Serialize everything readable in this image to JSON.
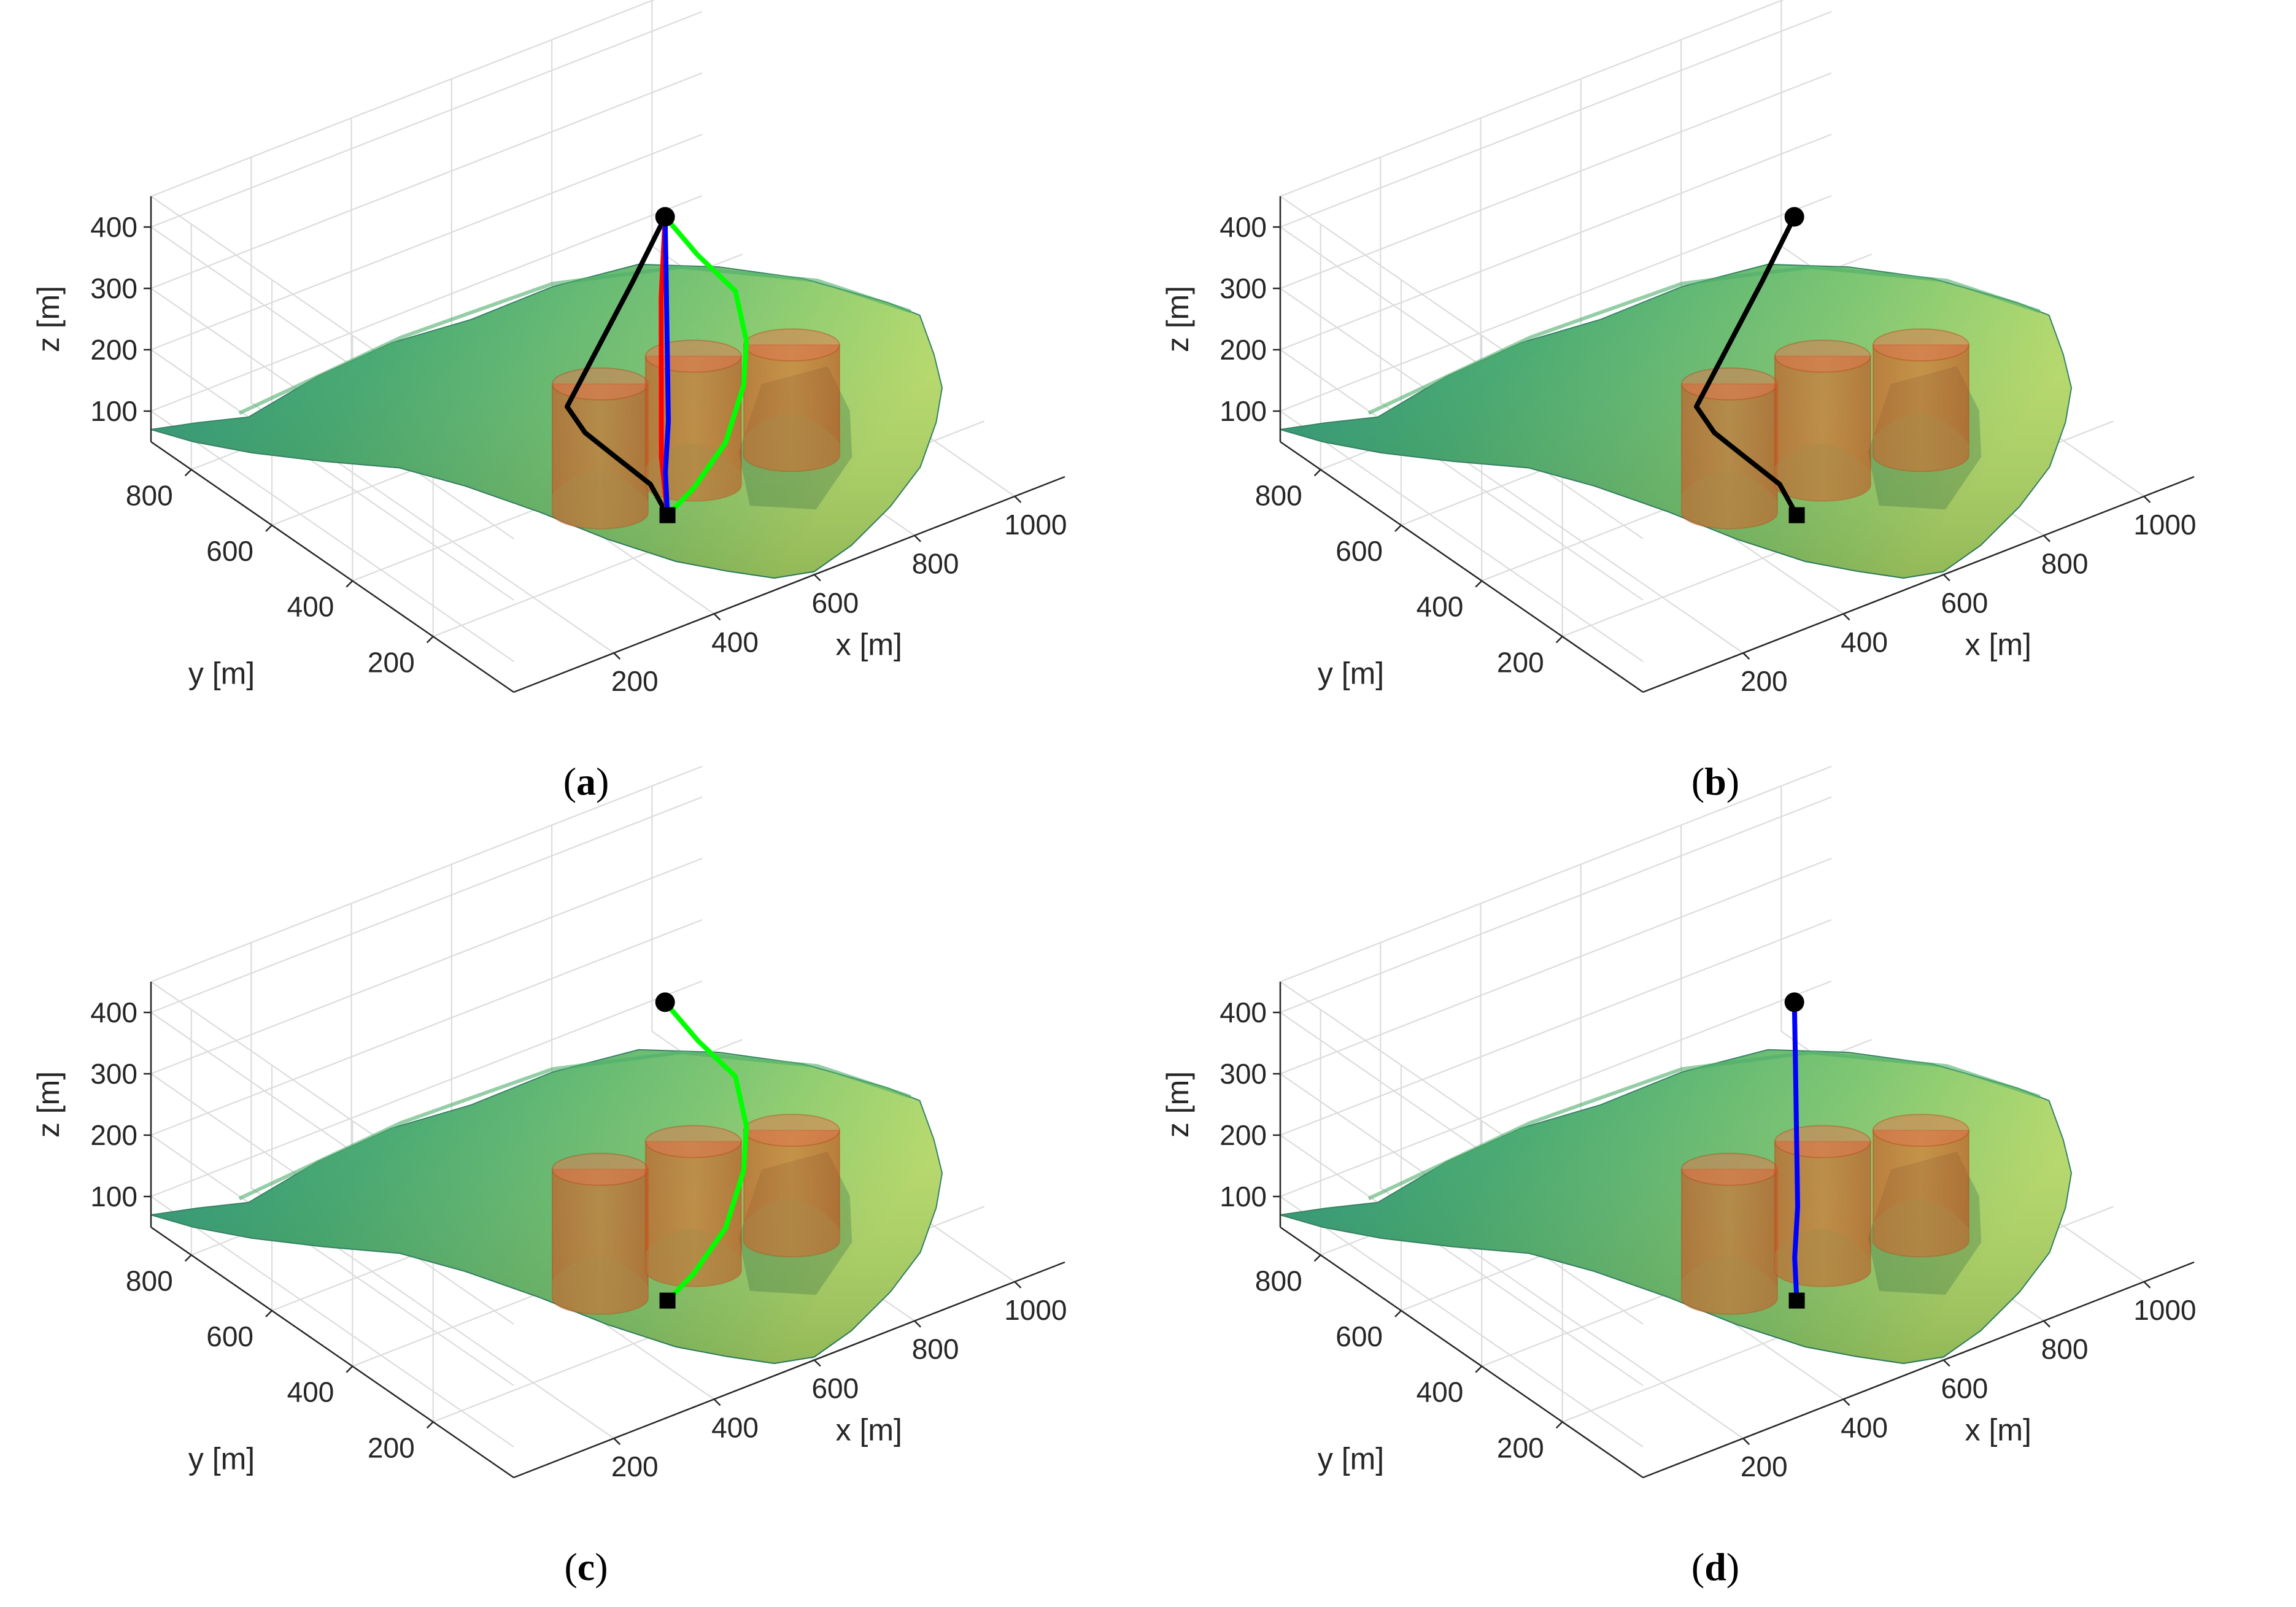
{
  "figure": {
    "panels": [
      {
        "id": "a",
        "caption_letter": "a",
        "paths": [
          {
            "name": "black",
            "color": "#000000"
          },
          {
            "name": "red",
            "color": "#ff0000"
          },
          {
            "name": "green",
            "color": "#00ff00"
          },
          {
            "name": "blue",
            "color": "#0000ff"
          }
        ]
      },
      {
        "id": "b",
        "caption_letter": "b",
        "paths": [
          {
            "name": "black",
            "color": "#000000"
          }
        ]
      },
      {
        "id": "c",
        "caption_letter": "c",
        "paths": [
          {
            "name": "green",
            "color": "#00ff00"
          }
        ]
      },
      {
        "id": "d",
        "caption_letter": "d",
        "paths": [
          {
            "name": "blue",
            "color": "#0000ff"
          }
        ]
      }
    ]
  },
  "chart_data": {
    "type": "surface3d",
    "title": "",
    "xlabel": "x [m]",
    "ylabel": "y [m]",
    "zlabel": "z [m]",
    "xlim": [
      0,
      1100
    ],
    "ylim": [
      0,
      900
    ],
    "zlim": [
      50,
      450
    ],
    "x_ticks": [
      {
        "value": 200,
        "label": "200"
      },
      {
        "value": 400,
        "label": "400"
      },
      {
        "value": 600,
        "label": "600"
      },
      {
        "value": 800,
        "label": "800"
      },
      {
        "value": 1000,
        "label": "1000"
      }
    ],
    "y_ticks": [
      {
        "value": 200,
        "label": "200"
      },
      {
        "value": 400,
        "label": "400"
      },
      {
        "value": 600,
        "label": "600"
      },
      {
        "value": 800,
        "label": "800"
      }
    ],
    "z_ticks": [
      {
        "value": 100,
        "label": "100"
      },
      {
        "value": 200,
        "label": "200"
      },
      {
        "value": 300,
        "label": "300"
      },
      {
        "value": 400,
        "label": "400"
      }
    ],
    "grid": true,
    "start_marker": "square",
    "goal_marker": "circle",
    "obstacles": "three semi-transparent red cylinders"
  }
}
